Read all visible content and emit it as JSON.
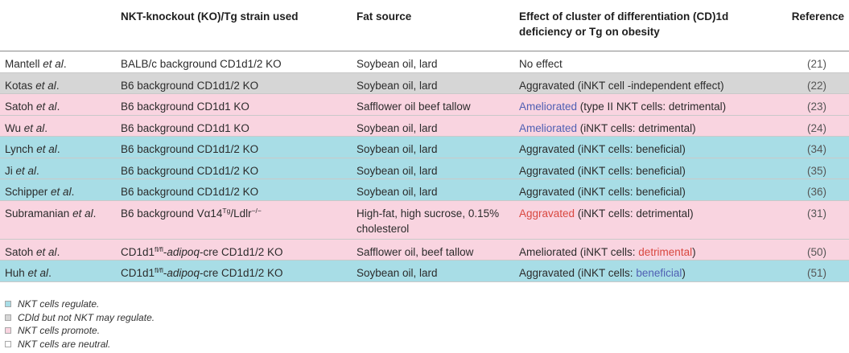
{
  "colors": {
    "blue": "#a8dde6",
    "gray": "#d6d6d6",
    "pink": "#f9d4e0",
    "white": "#ffffff"
  },
  "header": {
    "col0": "",
    "col1": "NKT-knockout (KO)/Tg strain used",
    "col2": "Fat source",
    "col3": "Effect of cluster of differentiation (CD)1d deficiency or Tg on obesity",
    "col4": "Reference"
  },
  "rows": [
    {
      "study": "Mantell ",
      "etal": "et al",
      "dot": ".",
      "strain_pre": "BALB/c background CD1d1/2 KO",
      "strain_sup": "",
      "strain_post": "",
      "strain_it": "",
      "strain_tail": "",
      "fat": "Soybean oil, lard",
      "effect": [
        {
          "t": "No effect",
          "c": "plain"
        }
      ],
      "ref": "(21)",
      "bg": "white"
    },
    {
      "study": "Kotas ",
      "etal": "et al",
      "dot": ".",
      "strain_pre": "B6 background CD1d1/2 KO",
      "strain_sup": "",
      "strain_post": "",
      "strain_it": "",
      "strain_tail": "",
      "fat": "Soybean oil, lard",
      "effect": [
        {
          "t": "Aggravated (iNKT cell -independent effect)",
          "c": "plain"
        }
      ],
      "ref": "(22)",
      "bg": "gray"
    },
    {
      "study": "Satoh ",
      "etal": "et al",
      "dot": ".",
      "strain_pre": "B6 background CD1d1 KO",
      "strain_sup": "",
      "strain_post": "",
      "strain_it": "",
      "strain_tail": "",
      "fat": "Safflower oil beef tallow",
      "effect": [
        {
          "t": "Ameliorated",
          "c": "blue"
        },
        {
          "t": " (type II NKT cells: detrimental)",
          "c": "plain"
        }
      ],
      "ref": "(23)",
      "bg": "pink"
    },
    {
      "study": "Wu ",
      "etal": "et al",
      "dot": ".",
      "strain_pre": "B6 background CD1d1 KO",
      "strain_sup": "",
      "strain_post": "",
      "strain_it": "",
      "strain_tail": "",
      "fat": "Soybean oil, lard",
      "effect": [
        {
          "t": "Ameliorated",
          "c": "blue"
        },
        {
          "t": " (iNKT cells: detrimental)",
          "c": "plain"
        }
      ],
      "ref": "(24)",
      "bg": "pink"
    },
    {
      "study": "Lynch ",
      "etal": "et al",
      "dot": ".",
      "strain_pre": "B6 background CD1d1/2 KO",
      "strain_sup": "",
      "strain_post": "",
      "strain_it": "",
      "strain_tail": "",
      "fat": "Soybean oil, lard",
      "effect": [
        {
          "t": "Aggravated (iNKT cells: beneficial)",
          "c": "plain"
        }
      ],
      "ref": "(34)",
      "bg": "blue"
    },
    {
      "study": "Ji ",
      "etal": "et al",
      "dot": ".",
      "strain_pre": "B6 background CD1d1/2 KO",
      "strain_sup": "",
      "strain_post": "",
      "strain_it": "",
      "strain_tail": "",
      "fat": "Soybean oil, lard",
      "effect": [
        {
          "t": "Aggravated (iNKT cells: beneficial)",
          "c": "plain"
        }
      ],
      "ref": "(35)",
      "bg": "blue"
    },
    {
      "study": "Schipper ",
      "etal": "et al",
      "dot": ".",
      "strain_pre": "B6 background CD1d1/2 KO",
      "strain_sup": "",
      "strain_post": "",
      "strain_it": "",
      "strain_tail": "",
      "fat": "Soybean oil, lard",
      "effect": [
        {
          "t": "Aggravated (iNKT cells: beneficial)",
          "c": "plain"
        }
      ],
      "ref": "(36)",
      "bg": "blue"
    },
    {
      "study": "Subramanian ",
      "etal": "et al",
      "dot": ".",
      "strain_pre": "B6 background Vα14",
      "strain_sup": "Tg",
      "strain_post": "/Ldlr",
      "strain_it": "",
      "strain_tail": "",
      "strain_sup2": "−/−",
      "fat": "High-fat, high sucrose, 0.15% cholesterol",
      "effect": [
        {
          "t": "Aggravated",
          "c": "red"
        },
        {
          "t": " (iNKT cells: detrimental)",
          "c": "plain"
        }
      ],
      "ref": "(31)",
      "bg": "pink",
      "tall": true
    },
    {
      "study": "Satoh ",
      "etal": "et al",
      "dot": ".",
      "strain_pre": "CD1d1",
      "strain_sup": "fl/fl",
      "strain_post": "-",
      "strain_it": "adipoq",
      "strain_tail": "-cre CD1d1/2 KO",
      "fat": "Safflower oil, beef tallow",
      "effect": [
        {
          "t": "Ameliorated (iNKT cells: ",
          "c": "plain"
        },
        {
          "t": "detrimental",
          "c": "red"
        },
        {
          "t": ")",
          "c": "plain"
        }
      ],
      "ref": "(50)",
      "bg": "pink"
    },
    {
      "study": "Huh ",
      "etal": "et al",
      "dot": ".",
      "strain_pre": "CD1d1",
      "strain_sup": "fl/fl",
      "strain_post": "-",
      "strain_it": "adipoq",
      "strain_tail": "-cre CD1d1/2 KO",
      "fat": "Soybean oil, lard",
      "effect": [
        {
          "t": "Aggravated (iNKT cells: ",
          "c": "plain"
        },
        {
          "t": "beneficial",
          "c": "blue"
        },
        {
          "t": ")",
          "c": "plain"
        }
      ],
      "ref": "(51)",
      "bg": "blue"
    }
  ],
  "legend": [
    {
      "label": "NKT cells regulate.",
      "bg": "blue"
    },
    {
      "label": "CDld but not NKT may regulate.",
      "bg": "gray"
    },
    {
      "label": "NKT cells promote.",
      "bg": "pink"
    },
    {
      "label": "NKT cells are neutral.",
      "bg": "white"
    }
  ]
}
